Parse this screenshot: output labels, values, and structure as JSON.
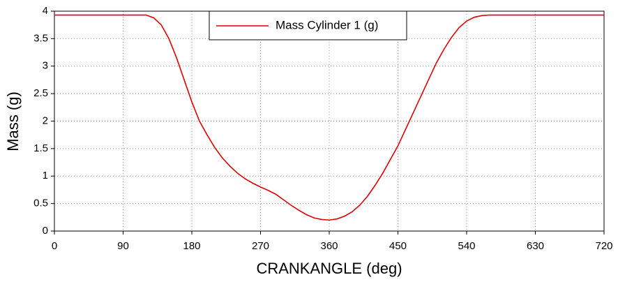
{
  "chart_data": {
    "type": "line",
    "xlabel": "CRANKANGLE (deg)",
    "ylabel": "Mass (g)",
    "x": [
      0,
      90,
      120,
      130,
      140,
      150,
      160,
      170,
      180,
      190,
      200,
      210,
      220,
      230,
      240,
      250,
      260,
      270,
      280,
      290,
      300,
      310,
      320,
      330,
      340,
      350,
      360,
      370,
      380,
      390,
      400,
      410,
      420,
      430,
      440,
      450,
      460,
      470,
      480,
      490,
      500,
      510,
      520,
      530,
      540,
      550,
      560,
      570,
      720
    ],
    "series": [
      {
        "name": "Mass Cylinder 1 (g)",
        "color": "#e00000",
        "values": [
          3.93,
          3.93,
          3.93,
          3.88,
          3.75,
          3.5,
          3.15,
          2.75,
          2.35,
          2.0,
          1.75,
          1.52,
          1.33,
          1.18,
          1.05,
          0.95,
          0.87,
          0.8,
          0.74,
          0.67,
          0.57,
          0.47,
          0.38,
          0.3,
          0.24,
          0.21,
          0.2,
          0.22,
          0.27,
          0.35,
          0.47,
          0.63,
          0.83,
          1.05,
          1.3,
          1.55,
          1.85,
          2.15,
          2.45,
          2.75,
          3.05,
          3.3,
          3.52,
          3.7,
          3.82,
          3.89,
          3.92,
          3.93,
          3.93
        ]
      }
    ],
    "xlim": [
      0,
      720
    ],
    "xticks": [
      0,
      90,
      180,
      270,
      360,
      450,
      540,
      630,
      720
    ],
    "ylim": [
      0,
      4
    ],
    "yticks": [
      0,
      0.5,
      1,
      1.5,
      2,
      2.5,
      3,
      3.5,
      4
    ],
    "grid": true,
    "legend": "top"
  }
}
